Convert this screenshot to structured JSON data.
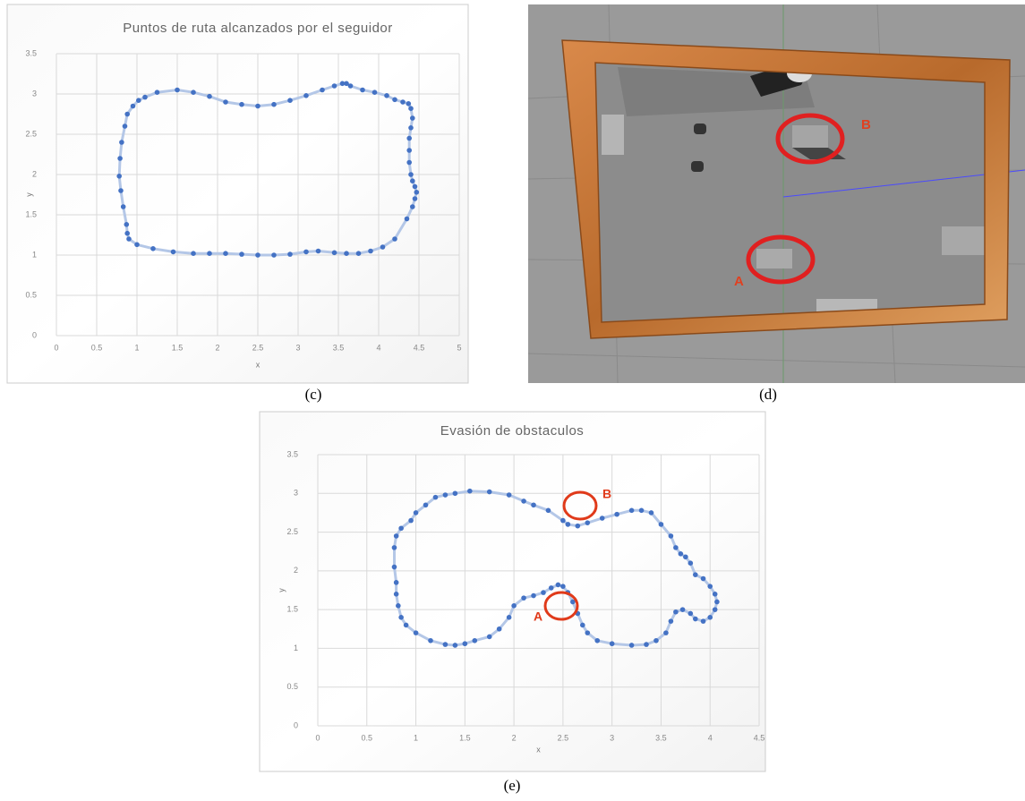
{
  "chart_data": [
    {
      "type": "scatter",
      "title": "Puntos de ruta alcanzados por el seguidor",
      "x_label": "x",
      "y_label": "y",
      "xlim": [
        0,
        5
      ],
      "ylim": [
        0,
        3.5
      ],
      "xticks": [
        0,
        0.5,
        1,
        1.5,
        2,
        2.5,
        3,
        3.5,
        4,
        4.5,
        5
      ],
      "yticks": [
        0,
        0.5,
        1,
        1.5,
        2,
        2.5,
        3,
        3.5
      ],
      "grid": true,
      "series": [
        {
          "color": "#4472c4",
          "line_color": "#b4c7e7",
          "x": [
            1.5,
            1.7,
            1.9,
            2.1,
            2.3,
            2.5,
            2.7,
            2.9,
            3.1,
            3.3,
            3.45,
            3.55,
            3.6,
            3.65,
            3.8,
            3.95,
            4.1,
            4.2,
            4.3,
            4.37,
            4.4,
            4.42,
            4.4,
            4.38,
            4.38,
            4.38,
            4.4,
            4.42,
            4.45,
            4.47,
            4.45,
            4.42,
            4.35,
            4.2,
            4.05,
            3.9,
            3.75,
            3.6,
            3.45,
            3.25,
            3.1,
            2.9,
            2.7,
            2.5,
            2.3,
            2.1,
            1.9,
            1.7,
            1.45,
            1.2,
            1.0,
            0.9,
            0.88,
            0.87,
            0.83,
            0.8,
            0.78,
            0.79,
            0.81,
            0.85,
            0.88,
            0.95,
            1.02,
            1.1,
            1.25
          ],
          "values": [
            3.05,
            3.02,
            2.97,
            2.9,
            2.87,
            2.85,
            2.87,
            2.92,
            2.98,
            3.05,
            3.1,
            3.13,
            3.13,
            3.1,
            3.05,
            3.02,
            2.98,
            2.93,
            2.9,
            2.88,
            2.82,
            2.7,
            2.58,
            2.45,
            2.3,
            2.15,
            2.0,
            1.92,
            1.85,
            1.78,
            1.7,
            1.6,
            1.45,
            1.2,
            1.1,
            1.05,
            1.02,
            1.02,
            1.03,
            1.05,
            1.04,
            1.01,
            1.0,
            1.0,
            1.01,
            1.02,
            1.02,
            1.02,
            1.04,
            1.08,
            1.13,
            1.2,
            1.27,
            1.38,
            1.6,
            1.8,
            1.98,
            2.2,
            2.4,
            2.6,
            2.75,
            2.85,
            2.92,
            2.96,
            3.02
          ]
        }
      ]
    },
    {
      "type": "scatter",
      "title": "Evasión de obstaculos",
      "x_label": "x",
      "y_label": "y",
      "xlim": [
        0,
        4.5
      ],
      "ylim": [
        0,
        3.5
      ],
      "xticks": [
        0,
        0.5,
        1,
        1.5,
        2,
        2.5,
        3,
        3.5,
        4,
        4.5
      ],
      "yticks": [
        0,
        0.5,
        1,
        1.5,
        2,
        2.5,
        3,
        3.5
      ],
      "grid": true,
      "annotations": [
        "A",
        "B"
      ],
      "series": [
        {
          "color": "#4472c4",
          "line_color": "#b4c7e7",
          "x": [
            1.0,
            1.1,
            1.2,
            1.3,
            1.4,
            1.55,
            1.75,
            1.95,
            2.1,
            2.2,
            2.35,
            2.5,
            2.55,
            2.65,
            2.75,
            2.9,
            3.05,
            3.2,
            3.3,
            3.4,
            3.5,
            3.6,
            3.65,
            3.7,
            3.75,
            3.8,
            3.85,
            3.93,
            4.0,
            4.05,
            4.07,
            4.05,
            4.0,
            3.93,
            3.85,
            3.8,
            3.72,
            3.65,
            3.6,
            3.55,
            3.45,
            3.35,
            3.2,
            3.0,
            2.85,
            2.75,
            2.7,
            2.65,
            2.6,
            2.55,
            2.5,
            2.45,
            2.38,
            2.3,
            2.2,
            2.1,
            2.0,
            1.95,
            1.85,
            1.75,
            1.6,
            1.5,
            1.4,
            1.3,
            1.15,
            1.0,
            0.9,
            0.85,
            0.82,
            0.8,
            0.8,
            0.78,
            0.78,
            0.8,
            0.85,
            0.95
          ],
          "values": [
            2.75,
            2.85,
            2.95,
            2.98,
            3.0,
            3.03,
            3.02,
            2.98,
            2.9,
            2.85,
            2.78,
            2.65,
            2.6,
            2.58,
            2.62,
            2.68,
            2.73,
            2.78,
            2.78,
            2.75,
            2.6,
            2.45,
            2.3,
            2.22,
            2.18,
            2.1,
            1.95,
            1.9,
            1.8,
            1.7,
            1.6,
            1.5,
            1.4,
            1.35,
            1.38,
            1.45,
            1.5,
            1.47,
            1.35,
            1.2,
            1.1,
            1.05,
            1.04,
            1.06,
            1.1,
            1.2,
            1.3,
            1.45,
            1.6,
            1.72,
            1.8,
            1.82,
            1.78,
            1.72,
            1.68,
            1.65,
            1.55,
            1.4,
            1.25,
            1.15,
            1.1,
            1.06,
            1.04,
            1.05,
            1.1,
            1.2,
            1.3,
            1.4,
            1.55,
            1.7,
            1.85,
            2.05,
            2.3,
            2.45,
            2.55,
            2.65
          ]
        }
      ]
    }
  ],
  "scene": {
    "labels": [
      "B",
      "A"
    ]
  },
  "captions": [
    "(c)",
    "(d)",
    "(e)"
  ]
}
